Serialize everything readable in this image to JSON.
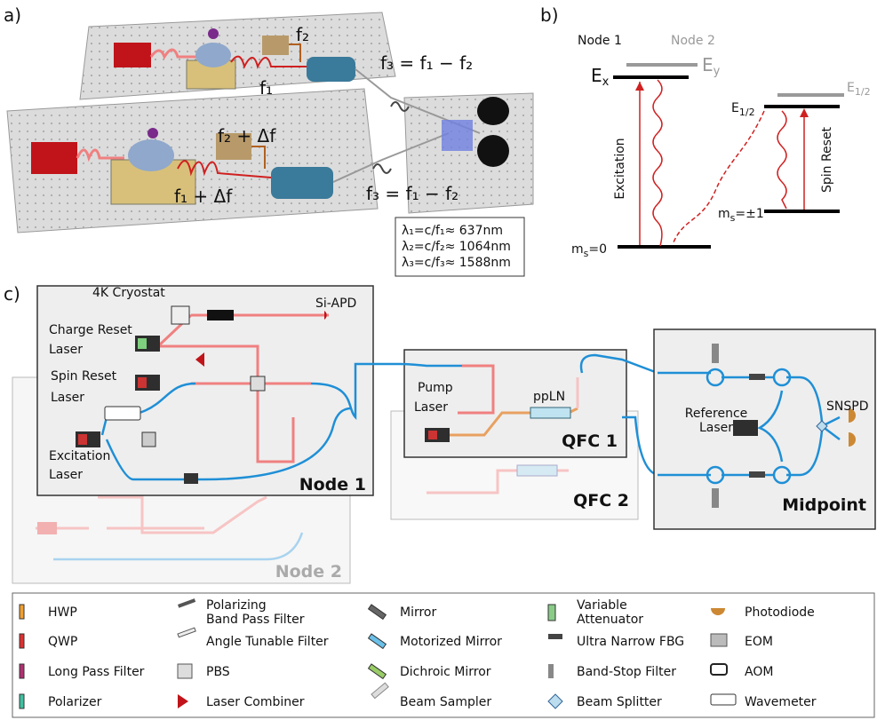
{
  "panel_a": {
    "label": "a)",
    "f2": "f₂",
    "f3_top": "f₃ = f₁ − f₂",
    "f1": "f₁",
    "f2_delta": "f₂ + Δf",
    "f1_delta": "f₁ + Δf",
    "f3_bottom": "f₃ = f₁ − f₂",
    "wavelengths": [
      "λ₁=c/f₁≈ 637nm",
      "λ₂=c/f₂≈ 1064nm",
      "λ₃=c/f₃≈ 1588nm"
    ]
  },
  "panel_b": {
    "label": "b)",
    "node1": "Node 1",
    "node2": "Node 2",
    "ex": {
      "base": "E",
      "sub": "x"
    },
    "ey": {
      "base": "E",
      "sub": "y"
    },
    "e12_node1": {
      "base": "E",
      "sub": "1/2"
    },
    "e12_node2": {
      "base": "E",
      "sub": "1/2"
    },
    "excitation": "Excitation",
    "spin_reset": "Spin Reset",
    "ms_pm1": {
      "base": "m",
      "sub": "s",
      "rest": "=±1"
    },
    "ms_0": {
      "base": "m",
      "sub": "s",
      "rest": "=0"
    }
  },
  "panel_c": {
    "label": "c)",
    "cryostat": "4K Cryostat",
    "si_apd": "Si-APD",
    "charge_reset": [
      "Charge Reset",
      "Laser"
    ],
    "spin_reset": [
      "Spin Reset",
      "Laser"
    ],
    "excitation": [
      "Excitation",
      "Laser"
    ],
    "node1": "Node 1",
    "node2": "Node 2",
    "pump": [
      "Pump",
      "Laser"
    ],
    "ppln": "ppLN",
    "qfc1": "QFC 1",
    "qfc2": "QFC 2",
    "reference": [
      "Reference",
      "Laser"
    ],
    "snspd": "SNSPD",
    "midpoint": "Midpoint"
  },
  "legend": [
    [
      [
        "HWP"
      ],
      [
        "QWP"
      ],
      [
        "Long Pass Filter"
      ],
      [
        "Polarizer"
      ]
    ],
    [
      [
        "Polarizing",
        "Band Pass Filter"
      ],
      [
        "Angle Tunable Filter"
      ],
      [
        "PBS"
      ],
      [
        "Laser Combiner"
      ]
    ],
    [
      [
        "Mirror"
      ],
      [
        "Motorized Mirror"
      ],
      [
        "Dichroic Mirror"
      ],
      [
        "Beam Sampler"
      ]
    ],
    [
      [
        "Variable",
        "Attenuator"
      ],
      [
        "Ultra Narrow FBG"
      ],
      [
        "Band-Stop Filter"
      ],
      [
        "Beam Splitter"
      ]
    ],
    [
      [
        "Photodiode"
      ],
      [
        "EOM"
      ],
      [
        "AOM"
      ],
      [
        "Wavemeter"
      ]
    ]
  ]
}
